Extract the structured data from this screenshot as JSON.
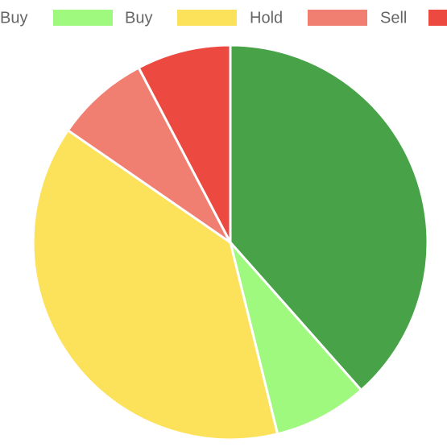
{
  "chart_data": {
    "type": "pie",
    "categories": [
      "Buy",
      "Buy",
      "Hold",
      "Sell",
      null
    ],
    "values": [
      5,
      1,
      5,
      1,
      1
    ],
    "colors": [
      "#48a248",
      "#a0f97f",
      "#fce15a",
      "#f07f72",
      "#ec4a41"
    ],
    "legend": "top"
  }
}
